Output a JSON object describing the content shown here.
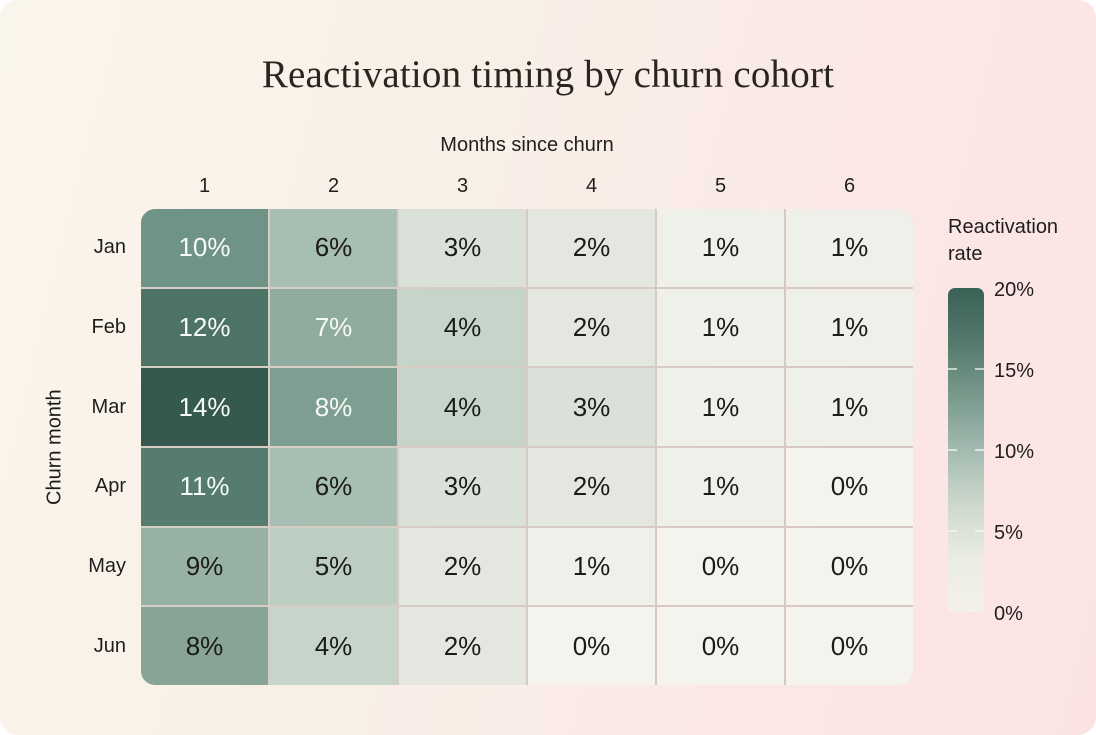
{
  "title": "Reactivation timing by churn cohort",
  "axes": {
    "x_title": "Months since churn",
    "y_title": "Churn month"
  },
  "legend": {
    "title": "Reactivation rate",
    "ticks": [
      "20%",
      "15%",
      "10%",
      "5%",
      "0%"
    ]
  },
  "colors": {
    "cell_text_light": "#f7faf6",
    "cell_text_dark": "#1b1b19",
    "grid_line": "#d8d3cb",
    "heatmap_dark": "#35594f",
    "heatmap_light": "#f5f3ed",
    "background_cream": "#faf5eb",
    "background_pink": "#fbe3e4"
  },
  "chart_data": {
    "type": "heatmap",
    "title": "Reactivation timing by churn cohort",
    "xlabel": "Months since churn",
    "ylabel": "Churn month",
    "columns": [
      "1",
      "2",
      "3",
      "4",
      "5",
      "6"
    ],
    "rows": [
      "Jan",
      "Feb",
      "Mar",
      "Apr",
      "May",
      "Jun"
    ],
    "values": [
      [
        10,
        6,
        3,
        2,
        1,
        1
      ],
      [
        12,
        7,
        4,
        2,
        1,
        1
      ],
      [
        14,
        8,
        4,
        3,
        1,
        1
      ],
      [
        11,
        6,
        3,
        2,
        1,
        0
      ],
      [
        9,
        5,
        2,
        1,
        0,
        0
      ],
      [
        8,
        4,
        2,
        0,
        0,
        0
      ]
    ],
    "unit": "%",
    "cell_colors": [
      [
        "#6f9487",
        "#a6bfb2",
        "#d9e1d8",
        "#e3e7df",
        "#eff0e9",
        "#eff0e9"
      ],
      [
        "#4d7366",
        "#8fac9f",
        "#c6d4ca",
        "#e3e7df",
        "#eff0e9",
        "#eff0e9"
      ],
      [
        "#35594f",
        "#7e9e91",
        "#c6d4ca",
        "#d9e1d8",
        "#eff0e9",
        "#eff0e9"
      ],
      [
        "#567c6f",
        "#a6bfb2",
        "#d9e1d8",
        "#e3e7df",
        "#eff0e9",
        "#f5f3ed"
      ],
      [
        "#97b1a4",
        "#bccdc1",
        "#e3e7df",
        "#eff0e9",
        "#f5f3ed",
        "#f5f3ed"
      ],
      [
        "#87a497",
        "#c6d4ca",
        "#e3e7df",
        "#f5f3ed",
        "#f5f3ed",
        "#f5f3ed"
      ]
    ],
    "cell_text_colors": [
      [
        "w",
        "d",
        "d",
        "d",
        "d",
        "d"
      ],
      [
        "w",
        "w",
        "d",
        "d",
        "d",
        "d"
      ],
      [
        "w",
        "w",
        "d",
        "d",
        "d",
        "d"
      ],
      [
        "w",
        "d",
        "d",
        "d",
        "d",
        "d"
      ],
      [
        "d",
        "d",
        "d",
        "d",
        "d",
        "d"
      ],
      [
        "d",
        "d",
        "d",
        "d",
        "d",
        "d"
      ]
    ],
    "colorbar": {
      "title": "Reactivation rate",
      "min": 0,
      "max": 20,
      "tick_labels": [
        "20%",
        "15%",
        "10%",
        "5%",
        "0%"
      ],
      "stops": [
        "#3a6156",
        "#54796c",
        "#79998c",
        "#a3bab0",
        "#cdd8cd",
        "#eaece4",
        "#f3f1ea"
      ],
      "notch_fractions": [
        0.25,
        0.5,
        0.75
      ]
    }
  }
}
